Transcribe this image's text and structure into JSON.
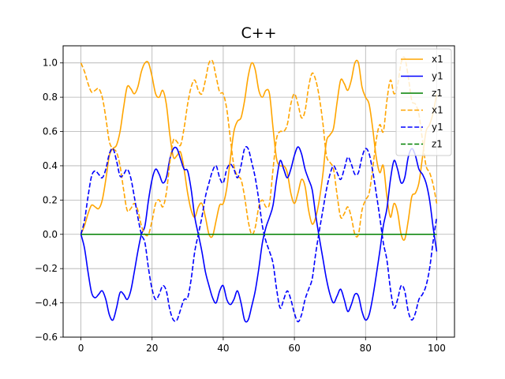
{
  "chart_data": {
    "type": "line",
    "title": "C++",
    "xlabel": "",
    "ylabel": "",
    "xlim": [
      -5,
      105
    ],
    "ylim": [
      -0.6,
      1.1
    ],
    "xticks": [
      0,
      20,
      40,
      60,
      80,
      100
    ],
    "yticks": [
      -0.6,
      -0.4,
      -0.2,
      0.0,
      0.2,
      0.4,
      0.6,
      0.8,
      1.0
    ],
    "xtick_labels": [
      "0",
      "20",
      "40",
      "60",
      "80",
      "100"
    ],
    "ytick_labels": [
      "−0.6",
      "−0.4",
      "−0.2",
      "0.0",
      "0.2",
      "0.4",
      "0.6",
      "0.8",
      "1.0"
    ],
    "grid": true,
    "legend_placement": "upper-right",
    "series": [
      {
        "name": "x1",
        "color": "#ffa500",
        "style": "solid",
        "x": [
          0,
          1,
          2,
          3,
          4,
          5,
          6,
          7,
          8,
          9,
          10,
          11,
          12,
          13,
          14,
          15,
          16,
          17,
          18,
          19,
          20,
          21,
          22,
          23,
          24,
          25,
          26,
          27,
          28,
          29,
          30,
          31,
          32,
          33,
          34,
          35,
          36,
          37,
          38,
          39,
          40,
          41,
          42,
          43,
          44,
          45,
          46,
          47,
          48,
          49,
          50,
          51,
          52,
          53,
          54,
          55,
          56,
          57,
          58,
          59,
          60,
          61,
          62,
          63,
          64,
          65,
          66,
          67,
          68,
          69,
          70,
          71,
          72,
          73,
          74,
          75,
          76,
          77,
          78,
          79,
          80,
          81,
          82,
          83,
          84,
          85,
          86,
          87,
          88,
          89,
          90,
          91,
          92,
          93,
          94,
          95,
          96,
          97,
          98,
          99,
          100
        ],
        "values": [
          0.0,
          0.05,
          0.12,
          0.17,
          0.16,
          0.15,
          0.2,
          0.32,
          0.46,
          0.5,
          0.52,
          0.6,
          0.74,
          0.86,
          0.85,
          0.82,
          0.86,
          0.95,
          1.0,
          1.0,
          0.92,
          0.82,
          0.8,
          0.84,
          0.76,
          0.58,
          0.45,
          0.46,
          0.48,
          0.38,
          0.24,
          0.14,
          0.1,
          0.16,
          0.18,
          0.1,
          0.0,
          -0.01,
          0.08,
          0.17,
          0.18,
          0.27,
          0.44,
          0.6,
          0.66,
          0.68,
          0.78,
          0.92,
          1.0,
          0.96,
          0.84,
          0.8,
          0.84,
          0.82,
          0.62,
          0.44,
          0.4,
          0.4,
          0.36,
          0.24,
          0.18,
          0.24,
          0.32,
          0.28,
          0.14,
          0.06,
          0.1,
          0.2,
          0.35,
          0.54,
          0.58,
          0.62,
          0.77,
          0.9,
          0.88,
          0.84,
          0.9,
          1.0,
          1.0,
          0.86,
          0.8,
          0.76,
          0.62,
          0.45,
          0.36,
          0.4,
          0.22,
          0.1,
          0.18,
          0.13,
          0.0,
          -0.03,
          0.08,
          0.22,
          0.24,
          0.3,
          0.45,
          0.6,
          0.64,
          0.71,
          0.82
        ]
      },
      {
        "name": "y1",
        "color": "#0000ff",
        "style": "solid",
        "x": [
          0,
          1,
          2,
          3,
          4,
          5,
          6,
          7,
          8,
          9,
          10,
          11,
          12,
          13,
          14,
          15,
          16,
          17,
          18,
          19,
          20,
          21,
          22,
          23,
          24,
          25,
          26,
          27,
          28,
          29,
          30,
          31,
          32,
          33,
          34,
          35,
          36,
          37,
          38,
          39,
          40,
          41,
          42,
          43,
          44,
          45,
          46,
          47,
          48,
          49,
          50,
          51,
          52,
          53,
          54,
          55,
          56,
          57,
          58,
          59,
          60,
          61,
          62,
          63,
          64,
          65,
          66,
          67,
          68,
          69,
          70,
          71,
          72,
          73,
          74,
          75,
          76,
          77,
          78,
          79,
          80,
          81,
          82,
          83,
          84,
          85,
          86,
          87,
          88,
          89,
          90,
          91,
          92,
          93,
          94,
          95,
          96,
          97,
          98,
          99,
          100
        ],
        "values": [
          0.0,
          -0.08,
          -0.22,
          -0.34,
          -0.37,
          -0.35,
          -0.33,
          -0.38,
          -0.47,
          -0.5,
          -0.43,
          -0.34,
          -0.35,
          -0.38,
          -0.33,
          -0.22,
          -0.1,
          0.0,
          0.05,
          0.2,
          0.32,
          0.38,
          0.35,
          0.3,
          0.33,
          0.44,
          0.5,
          0.5,
          0.44,
          0.38,
          0.37,
          0.26,
          0.1,
          0.0,
          -0.1,
          -0.22,
          -0.3,
          -0.37,
          -0.4,
          -0.33,
          -0.3,
          -0.38,
          -0.41,
          -0.38,
          -0.33,
          -0.4,
          -0.5,
          -0.5,
          -0.42,
          -0.33,
          -0.2,
          -0.05,
          0.04,
          0.1,
          0.17,
          0.32,
          0.43,
          0.38,
          0.33,
          0.38,
          0.46,
          0.51,
          0.47,
          0.38,
          0.32,
          0.26,
          0.11,
          -0.02,
          -0.14,
          -0.26,
          -0.35,
          -0.4,
          -0.36,
          -0.32,
          -0.38,
          -0.45,
          -0.41,
          -0.35,
          -0.36,
          -0.45,
          -0.5,
          -0.47,
          -0.37,
          -0.24,
          -0.1,
          0.05,
          0.15,
          0.32,
          0.43,
          0.38,
          0.3,
          0.33,
          0.45,
          0.5,
          0.46,
          0.38,
          0.35,
          0.3,
          0.2,
          0.04,
          -0.1
        ]
      },
      {
        "name": "z1",
        "color": "#008000",
        "style": "solid",
        "x": [
          0,
          100
        ],
        "values": [
          0.0,
          0.0
        ]
      },
      {
        "name": "x1",
        "color": "#ffa500",
        "style": "dashed",
        "x": [
          0,
          1,
          2,
          3,
          4,
          5,
          6,
          7,
          8,
          9,
          10,
          11,
          12,
          13,
          14,
          15,
          16,
          17,
          18,
          19,
          20,
          21,
          22,
          23,
          24,
          25,
          26,
          27,
          28,
          29,
          30,
          31,
          32,
          33,
          34,
          35,
          36,
          37,
          38,
          39,
          40,
          41,
          42,
          43,
          44,
          45,
          46,
          47,
          48,
          49,
          50,
          51,
          52,
          53,
          54,
          55,
          56,
          57,
          58,
          59,
          60,
          61,
          62,
          63,
          64,
          65,
          66,
          67,
          68,
          69,
          70,
          71,
          72,
          73,
          74,
          75,
          76,
          77,
          78,
          79,
          80,
          81,
          82,
          83,
          84,
          85,
          86,
          87,
          88,
          89,
          90,
          91,
          92,
          93,
          94,
          95,
          96,
          97,
          98,
          99,
          100
        ],
        "values": [
          1.0,
          0.95,
          0.88,
          0.83,
          0.84,
          0.85,
          0.8,
          0.68,
          0.54,
          0.5,
          0.48,
          0.4,
          0.26,
          0.14,
          0.15,
          0.18,
          0.14,
          0.05,
          0.0,
          0.0,
          0.08,
          0.18,
          0.2,
          0.16,
          0.24,
          0.42,
          0.55,
          0.54,
          0.52,
          0.62,
          0.76,
          0.86,
          0.9,
          0.84,
          0.82,
          0.9,
          1.0,
          1.01,
          0.92,
          0.83,
          0.82,
          0.73,
          0.56,
          0.4,
          0.34,
          0.32,
          0.22,
          0.08,
          0.0,
          0.04,
          0.16,
          0.2,
          0.16,
          0.18,
          0.38,
          0.56,
          0.6,
          0.6,
          0.64,
          0.76,
          0.82,
          0.76,
          0.68,
          0.72,
          0.86,
          0.94,
          0.9,
          0.8,
          0.65,
          0.46,
          0.42,
          0.38,
          0.23,
          0.1,
          0.12,
          0.16,
          0.1,
          0.0,
          0.0,
          0.14,
          0.2,
          0.24,
          0.38,
          0.55,
          0.64,
          0.6,
          0.78,
          0.9,
          0.82,
          0.87,
          1.0,
          1.03,
          0.92,
          0.78,
          0.76,
          0.7,
          0.55,
          0.4,
          0.36,
          0.29,
          0.18
        ]
      },
      {
        "name": "y1",
        "color": "#0000ff",
        "style": "dashed",
        "x": [
          0,
          1,
          2,
          3,
          4,
          5,
          6,
          7,
          8,
          9,
          10,
          11,
          12,
          13,
          14,
          15,
          16,
          17,
          18,
          19,
          20,
          21,
          22,
          23,
          24,
          25,
          26,
          27,
          28,
          29,
          30,
          31,
          32,
          33,
          34,
          35,
          36,
          37,
          38,
          39,
          40,
          41,
          42,
          43,
          44,
          45,
          46,
          47,
          48,
          49,
          50,
          51,
          52,
          53,
          54,
          55,
          56,
          57,
          58,
          59,
          60,
          61,
          62,
          63,
          64,
          65,
          66,
          67,
          68,
          69,
          70,
          71,
          72,
          73,
          74,
          75,
          76,
          77,
          78,
          79,
          80,
          81,
          82,
          83,
          84,
          85,
          86,
          87,
          88,
          89,
          90,
          91,
          92,
          93,
          94,
          95,
          96,
          97,
          98,
          99,
          100
        ],
        "values": [
          0.0,
          0.08,
          0.22,
          0.34,
          0.37,
          0.35,
          0.33,
          0.38,
          0.47,
          0.5,
          0.43,
          0.34,
          0.35,
          0.38,
          0.33,
          0.22,
          0.1,
          0.0,
          -0.05,
          -0.2,
          -0.32,
          -0.38,
          -0.35,
          -0.3,
          -0.33,
          -0.44,
          -0.5,
          -0.5,
          -0.44,
          -0.38,
          -0.37,
          -0.26,
          -0.1,
          0.0,
          0.1,
          0.22,
          0.3,
          0.37,
          0.4,
          0.33,
          0.3,
          0.38,
          0.41,
          0.38,
          0.33,
          0.4,
          0.5,
          0.5,
          0.42,
          0.33,
          0.2,
          0.05,
          -0.04,
          -0.1,
          -0.17,
          -0.32,
          -0.43,
          -0.38,
          -0.33,
          -0.38,
          -0.46,
          -0.51,
          -0.47,
          -0.38,
          -0.32,
          -0.26,
          -0.11,
          0.02,
          0.14,
          0.26,
          0.35,
          0.4,
          0.36,
          0.32,
          0.38,
          0.45,
          0.41,
          0.35,
          0.36,
          0.45,
          0.5,
          0.47,
          0.37,
          0.24,
          0.1,
          -0.05,
          -0.15,
          -0.32,
          -0.43,
          -0.38,
          -0.3,
          -0.33,
          -0.45,
          -0.5,
          -0.46,
          -0.38,
          -0.35,
          -0.3,
          -0.2,
          -0.04,
          0.1
        ]
      },
      {
        "name": "z1",
        "color": "#008000",
        "style": "dashed",
        "x": [
          0,
          100
        ],
        "values": [
          0.0,
          0.0
        ]
      }
    ]
  }
}
